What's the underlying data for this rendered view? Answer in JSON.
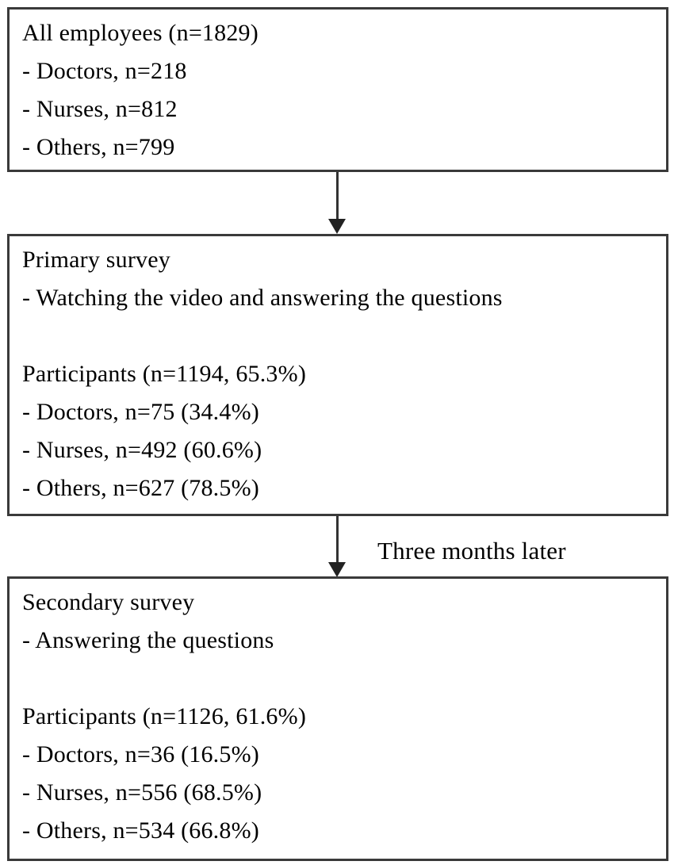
{
  "figure": {
    "background_color": "#ffffff",
    "border_color": "#3a3a3a",
    "text_color": "#000000"
  },
  "boxes": [
    {
      "id": "all-employees",
      "lines": [
        "All employees (n=1829)",
        "- Doctors, n=218",
        "- Nurses, n=812",
        "- Others, n=799"
      ]
    },
    {
      "id": "primary-survey",
      "lines": [
        "Primary survey",
        "- Watching the video and answering the questions",
        "",
        "Participants (n=1194, 65.3%)",
        "- Doctors, n=75 (34.4%)",
        "- Nurses, n=492 (60.6%)",
        "- Others, n=627 (78.5%)"
      ]
    },
    {
      "id": "secondary-survey",
      "lines": [
        "Secondary survey",
        "- Answering the questions",
        "",
        "Participants (n=1126, 61.6%)",
        "- Doctors, n=36 (16.5%)",
        "- Nurses, n=556 (68.5%)",
        "- Others, n=534 (66.8%)"
      ]
    }
  ],
  "arrows": [
    {
      "id": "arrow-to-primary",
      "label": ""
    },
    {
      "id": "arrow-to-secondary",
      "label": "Three months later"
    }
  ]
}
